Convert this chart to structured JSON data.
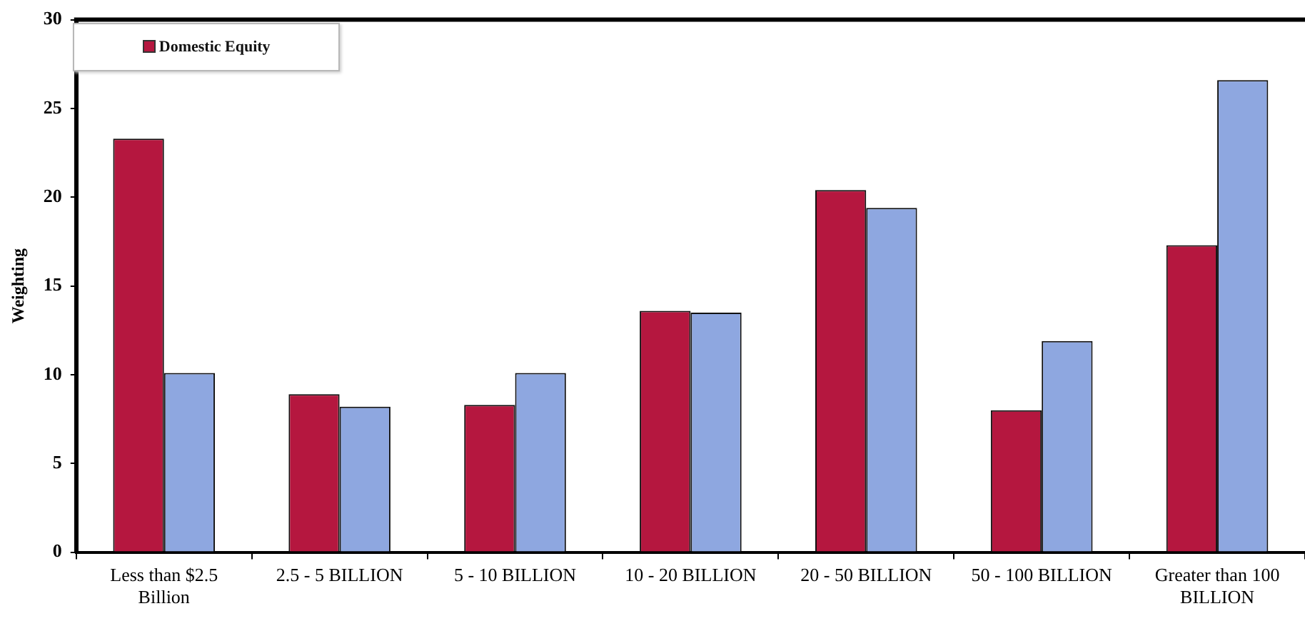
{
  "chart_data": {
    "type": "bar",
    "ylabel": "Weighting",
    "categories": [
      "Less than $2.5 Billion",
      "2.5 - 5 BILLION",
      "5 - 10 BILLION",
      "10 - 20 BILLION",
      "20 - 50 BILLION",
      "50 - 100 BILLION",
      "Greater than 100 BILLION"
    ],
    "series": [
      {
        "name": "Domestic Equity",
        "color": "#b5173f",
        "values": [
          23.3,
          8.9,
          8.3,
          13.6,
          20.4,
          8.0,
          17.3
        ]
      },
      {
        "color": "#8ea7e0",
        "values": [
          10.1,
          8.2,
          10.1,
          13.5,
          19.4,
          11.9,
          26.6
        ]
      }
    ],
    "ylim": [
      0,
      30
    ],
    "yticks": [
      0,
      5,
      10,
      15,
      20,
      25,
      30
    ],
    "grid": false,
    "legend": "top left"
  }
}
